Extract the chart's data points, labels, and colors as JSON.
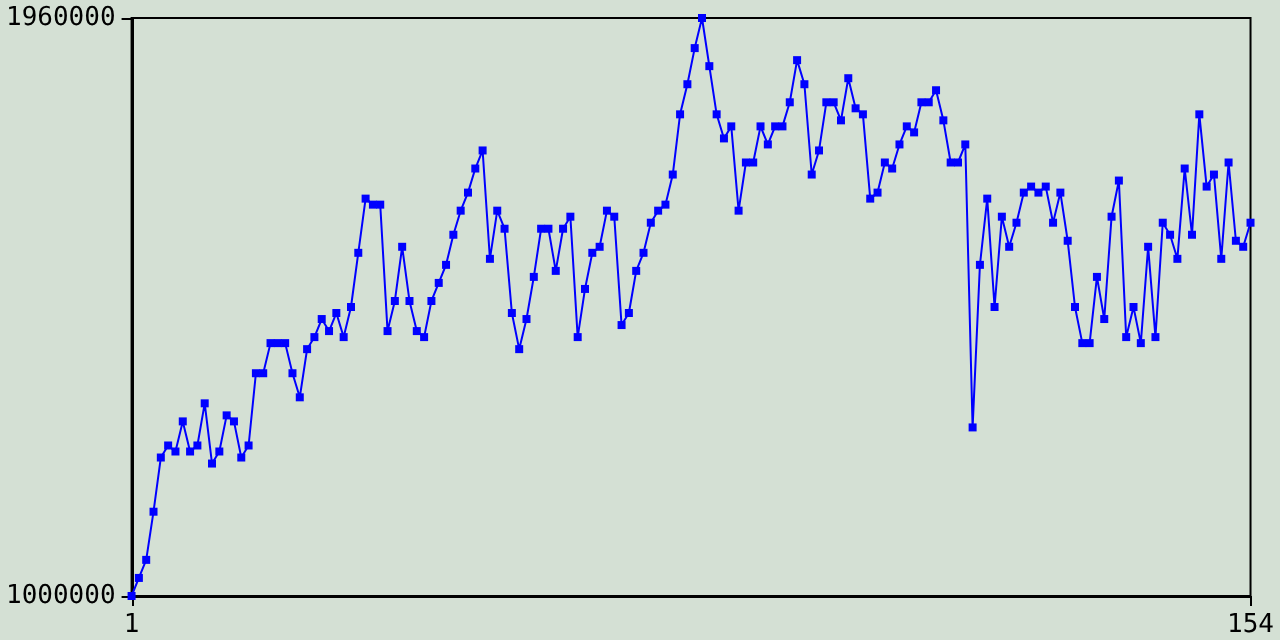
{
  "chart_data": {
    "type": "line",
    "color": "#0000ff",
    "marker": "square",
    "grid": false,
    "xlim": [
      1,
      154
    ],
    "xticks": [
      1,
      154
    ],
    "ylim": [
      1000000,
      1960000
    ],
    "yticks": [
      1000000,
      1960000
    ],
    "x": [
      1,
      2,
      3,
      4,
      5,
      6,
      7,
      8,
      9,
      10,
      11,
      12,
      13,
      14,
      15,
      16,
      17,
      18,
      19,
      20,
      21,
      22,
      23,
      24,
      25,
      26,
      27,
      28,
      29,
      30,
      31,
      32,
      33,
      34,
      35,
      36,
      37,
      38,
      39,
      40,
      41,
      42,
      43,
      44,
      45,
      46,
      47,
      48,
      49,
      50,
      51,
      52,
      53,
      54,
      55,
      56,
      57,
      58,
      59,
      60,
      61,
      62,
      63,
      64,
      65,
      66,
      67,
      68,
      69,
      70,
      71,
      72,
      73,
      74,
      75,
      76,
      77,
      78,
      79,
      80,
      81,
      82,
      83,
      84,
      85,
      86,
      87,
      88,
      89,
      90,
      91,
      92,
      93,
      94,
      95,
      96,
      97,
      98,
      99,
      100,
      101,
      102,
      103,
      104,
      105,
      106,
      107,
      108,
      109,
      110,
      111,
      112,
      113,
      114,
      115,
      116,
      117,
      118,
      119,
      120,
      121,
      122,
      123,
      124,
      125,
      126,
      127,
      128,
      129,
      130,
      131,
      132,
      133,
      134,
      135,
      136,
      137,
      138,
      139,
      140,
      141,
      142,
      143,
      144,
      145,
      146,
      147,
      148,
      149,
      150,
      151,
      152,
      153,
      154
    ],
    "values": [
      1000000,
      1030000,
      1060000,
      1140000,
      1230000,
      1250000,
      1240000,
      1290000,
      1240000,
      1250000,
      1320000,
      1220000,
      1240000,
      1300000,
      1290000,
      1230000,
      1250000,
      1370000,
      1370000,
      1420000,
      1420000,
      1420000,
      1370000,
      1330000,
      1410000,
      1430000,
      1460000,
      1440000,
      1470000,
      1430000,
      1480000,
      1570000,
      1660000,
      1650000,
      1650000,
      1440000,
      1490000,
      1580000,
      1490000,
      1440000,
      1430000,
      1490000,
      1520000,
      1550000,
      1600000,
      1640000,
      1670000,
      1710000,
      1740000,
      1560000,
      1640000,
      1610000,
      1470000,
      1410000,
      1460000,
      1530000,
      1610000,
      1610000,
      1540000,
      1610000,
      1630000,
      1430000,
      1510000,
      1570000,
      1580000,
      1640000,
      1630000,
      1450000,
      1470000,
      1540000,
      1570000,
      1620000,
      1640000,
      1650000,
      1700000,
      1800000,
      1850000,
      1910000,
      1960000,
      1880000,
      1800000,
      1760000,
      1780000,
      1640000,
      1720000,
      1720000,
      1780000,
      1750000,
      1780000,
      1780000,
      1820000,
      1890000,
      1850000,
      1700000,
      1740000,
      1820000,
      1820000,
      1790000,
      1860000,
      1810000,
      1800000,
      1660000,
      1670000,
      1720000,
      1710000,
      1750000,
      1780000,
      1770000,
      1820000,
      1820000,
      1840000,
      1790000,
      1720000,
      1720000,
      1750000,
      1280000,
      1550000,
      1660000,
      1480000,
      1630000,
      1580000,
      1620000,
      1670000,
      1680000,
      1670000,
      1680000,
      1620000,
      1670000,
      1590000,
      1480000,
      1420000,
      1420000,
      1530000,
      1460000,
      1630000,
      1690000,
      1430000,
      1480000,
      1420000,
      1580000,
      1430000,
      1620000,
      1600000,
      1560000,
      1710000,
      1600000,
      1800000,
      1680000,
      1700000,
      1560000,
      1720000,
      1590000,
      1580000,
      1620000
    ]
  }
}
